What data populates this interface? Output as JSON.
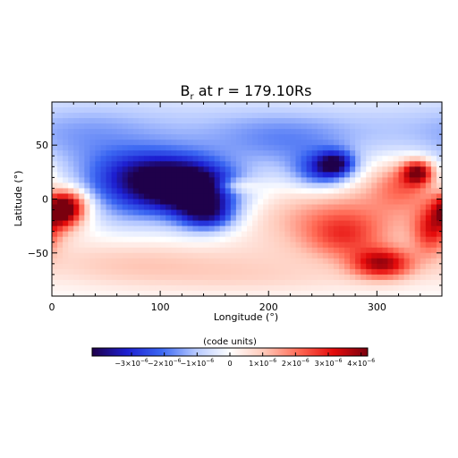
{
  "chart_data": {
    "type": "heatmap",
    "title_main": "B",
    "title_sub": "r",
    "title_rest": " at r = 179.10Rs",
    "xlabel": "Longitude (°)",
    "ylabel": "Latitude (°)",
    "xlim": [
      0,
      360
    ],
    "ylim": [
      -90,
      90
    ],
    "x_ticks": [
      0,
      100,
      200,
      300
    ],
    "y_ticks": [
      -50,
      0,
      50
    ],
    "x_minor_step": 20,
    "y_minor_step": 10,
    "field_description": "Blue (negative) patches in northern/central band near lon 60-150 and lon 220-270; red (positive) southern hemisphere, strongest near lon 330-345 lat 20-30 and lon 290-320 lat -60; red patch at lon 0-20 lat -10",
    "features": [
      {
        "lon": 120,
        "lat": 10,
        "value": -3.2e-06,
        "wlon": 35,
        "wlat": 15
      },
      {
        "lon": 90,
        "lat": 25,
        "value": -2.4e-06,
        "wlon": 40,
        "wlat": 15
      },
      {
        "lon": 135,
        "lat": 0,
        "value": -2e-06,
        "wlon": 25,
        "wlat": 20
      },
      {
        "lon": 145,
        "lat": -15,
        "value": -2.2e-06,
        "wlon": 18,
        "wlat": 10
      },
      {
        "lon": 70,
        "lat": -5,
        "value": -1.4e-06,
        "wlon": 30,
        "wlat": 18
      },
      {
        "lon": 100,
        "lat": 60,
        "value": -1e-06,
        "wlon": 70,
        "wlat": 25
      },
      {
        "lon": 250,
        "lat": 25,
        "value": -2.4e-06,
        "wlon": 20,
        "wlat": 12
      },
      {
        "lon": 262,
        "lat": 33,
        "value": -2.6e-06,
        "wlon": 12,
        "wlat": 8
      },
      {
        "lon": 230,
        "lat": 50,
        "value": -9e-07,
        "wlon": 40,
        "wlat": 20
      },
      {
        "lon": 300,
        "lat": 65,
        "value": -8e-07,
        "wlon": 60,
        "wlat": 20
      },
      {
        "lon": 30,
        "lat": 55,
        "value": -7e-07,
        "wlon": 40,
        "wlat": 25
      },
      {
        "lon": 190,
        "lat": 60,
        "value": -6e-07,
        "wlon": 40,
        "wlat": 20
      },
      {
        "lon": 20,
        "lat": 10,
        "value": -6e-07,
        "wlon": 25,
        "wlat": 10
      },
      {
        "lon": 8,
        "lat": -10,
        "value": 3.6e-06,
        "wlon": 12,
        "wlat": 12
      },
      {
        "lon": 20,
        "lat": -5,
        "value": 2e-06,
        "wlon": 12,
        "wlat": 12
      },
      {
        "lon": 338,
        "lat": 25,
        "value": 3.6e-06,
        "wlon": 10,
        "wlat": 8
      },
      {
        "lon": 325,
        "lat": 15,
        "value": 1.6e-06,
        "wlon": 20,
        "wlat": 15
      },
      {
        "lon": 305,
        "lat": -60,
        "value": 3.3e-06,
        "wlon": 20,
        "wlat": 10
      },
      {
        "lon": 270,
        "lat": -35,
        "value": 1.7e-06,
        "wlon": 25,
        "wlat": 15
      },
      {
        "lon": 350,
        "lat": -30,
        "value": 2.4e-06,
        "wlon": 12,
        "wlat": 15
      },
      {
        "lon": 230,
        "lat": -20,
        "value": 9e-07,
        "wlon": 40,
        "wlat": 20
      },
      {
        "lon": 300,
        "lat": -10,
        "value": 1.2e-06,
        "wlon": 50,
        "wlat": 25
      },
      {
        "lon": 170,
        "lat": 12,
        "value": 1.3e-06,
        "wlon": 14,
        "wlat": 5
      },
      {
        "lon": 160,
        "lat": -60,
        "value": 6e-07,
        "wlon": 80,
        "wlat": 15
      },
      {
        "lon": 60,
        "lat": -60,
        "value": 7e-07,
        "wlon": 60,
        "wlat": 15
      },
      {
        "lon": 200,
        "lat": -75,
        "value": 4e-07,
        "wlon": 80,
        "wlat": 10
      }
    ],
    "colorbar": {
      "label": "(code units)",
      "range": [
        -4.2e-06,
        4.2e-06
      ],
      "colors": [
        "#1f004a",
        "#1d1fd0",
        "#3a66f2",
        "#b5c8ff",
        "#ffffff",
        "#ffc8b8",
        "#ff6a55",
        "#e50c0c",
        "#7a000e"
      ],
      "ticks": [
        {
          "value": -3e-06,
          "mant": "−3×10",
          "exp": "−6"
        },
        {
          "value": -2e-06,
          "mant": "−2×10",
          "exp": "−6"
        },
        {
          "value": -1e-06,
          "mant": "−1×10",
          "exp": "−6"
        },
        {
          "value": 0,
          "mant": "0",
          "exp": ""
        },
        {
          "value": 1e-06,
          "mant": "1×10",
          "exp": "−6"
        },
        {
          "value": 2e-06,
          "mant": "2×10",
          "exp": "−6"
        },
        {
          "value": 3e-06,
          "mant": "3×10",
          "exp": "−6"
        },
        {
          "value": 4e-06,
          "mant": "4×10",
          "exp": "−6"
        }
      ]
    }
  }
}
